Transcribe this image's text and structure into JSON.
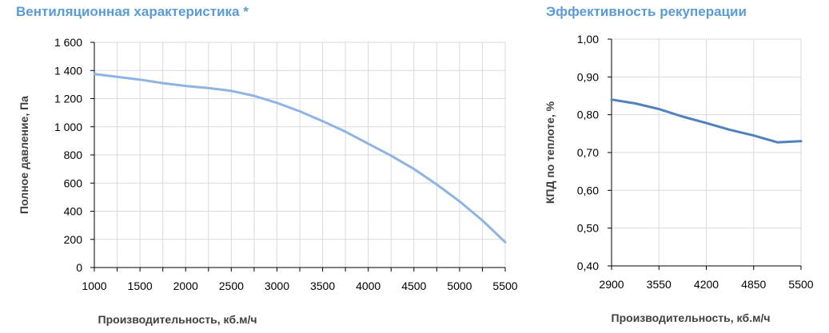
{
  "colors": {
    "title": "#5b9bd5",
    "grid": "#d9d9d9",
    "axis": "#000000",
    "fan_line": "#8eb4e3",
    "eff_line": "#4f81bd"
  },
  "chart_data": [
    {
      "type": "line",
      "title": "Вентиляционная характеристика *",
      "xlabel": "Производительность, кб.м/ч",
      "ylabel": "Полное давление, Па",
      "xlim": [
        1000,
        5500
      ],
      "ylim": [
        0,
        1600
      ],
      "x_ticks": [
        1000,
        1500,
        2000,
        2500,
        3000,
        3500,
        4000,
        4500,
        5000,
        5500
      ],
      "x_tick_labels": [
        "1000",
        "1500",
        "2000",
        "2500",
        "3000",
        "3500",
        "4000",
        "4500",
        "5000",
        "5500"
      ],
      "x_minor_step": 250,
      "y_ticks": [
        0,
        200,
        400,
        600,
        800,
        1000,
        1200,
        1400,
        1600
      ],
      "y_tick_labels": [
        "0",
        "200",
        "400",
        "600",
        "800",
        "1 000",
        "1 200",
        "1 400",
        "1 600"
      ],
      "grid": true,
      "series": [
        {
          "x": [
            1000,
            1250,
            1500,
            1750,
            2000,
            2250,
            2500,
            2750,
            3000,
            3250,
            3500,
            3750,
            4000,
            4250,
            4500,
            4750,
            5000,
            5250,
            5500
          ],
          "y": [
            1375,
            1355,
            1335,
            1310,
            1290,
            1275,
            1255,
            1220,
            1170,
            1110,
            1040,
            965,
            880,
            795,
            700,
            590,
            470,
            335,
            180
          ]
        }
      ]
    },
    {
      "type": "line",
      "title": "Эффективность рекуперации",
      "xlabel": "Производительность, кб.м/ч",
      "ylabel": "КПД по теплоте, %",
      "xlim": [
        2900,
        5500
      ],
      "ylim": [
        0.4,
        1.0
      ],
      "x_ticks": [
        2900,
        3550,
        4200,
        4850,
        5500
      ],
      "x_tick_labels": [
        "2900",
        "3550",
        "4200",
        "4850",
        "5500"
      ],
      "y_ticks": [
        0.4,
        0.5,
        0.6,
        0.7,
        0.8,
        0.9,
        1.0
      ],
      "y_tick_labels": [
        "0,40",
        "0,50",
        "0,60",
        "0,70",
        "0,80",
        "0,90",
        "1,00"
      ],
      "grid": true,
      "series": [
        {
          "x": [
            2900,
            3225,
            3550,
            3875,
            4200,
            4525,
            4850,
            5175,
            5500
          ],
          "y": [
            0.84,
            0.83,
            0.815,
            0.795,
            0.778,
            0.76,
            0.745,
            0.727,
            0.73
          ]
        }
      ]
    }
  ]
}
